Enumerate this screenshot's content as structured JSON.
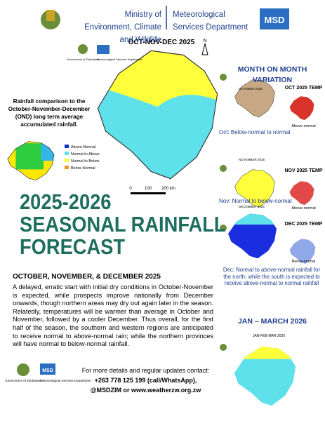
{
  "header": {
    "ministry": "Ministry of Environment, Climate and Wildlife",
    "department": "Meteorological Services Department",
    "logo": "MSD"
  },
  "main_map": {
    "title": "OCT-NOV-DEC 2025",
    "gov_label": "Government of Zimbabwe",
    "msd_label": "Meteorological Services Department",
    "scale": [
      "0",
      "100",
      "200 km"
    ],
    "north": "N"
  },
  "comparison": {
    "caption": "Rainfall comparison to the October-November-December (OND) long term average accumulated rainfall.",
    "legend": [
      "Above-Normal",
      "Normal to Above",
      "Normal to Below",
      "Below-Normal"
    ]
  },
  "title": {
    "line1": "2025-2026",
    "line2": "SEASONAL RAINFALL",
    "line3": "FORECAST"
  },
  "body": {
    "heading": "OCTOBER, NOVEMBER, & DECEMBER 2025",
    "paragraph": "A delayed, erratic start with initial dry conditions in October-November is expected, while prospects improve nationally from December onwards, though northern areas may dry out again later in the season. Relatedly, temperatures will be warmer than average in October and November, followed by a cooler December. Thus overall, for the first half of the season, the southern and western regions are anticipated to receive normal to above-normal rain; while the northern provinces will have normal to below-normal rainfall."
  },
  "contact": {
    "intro": "For more details and regular updates contact:",
    "phone": "+263 778 125 199 (call/WhatsApp),",
    "web": "@MSDZIM or www.weatherzw.org.zw",
    "gov_label": "Government of Zimbabwe",
    "msd_label": "Meteorological Services Department",
    "logo": "MSD"
  },
  "sidebar": {
    "title": "MONTH ON MONTH VARIATION",
    "panels": [
      {
        "map_title": "OCTOBER 2025",
        "temp_title": "OCT 2025 TEMP",
        "temp_label": "Above-normal",
        "caption": "Oct: Below-normal to normal"
      },
      {
        "map_title": "NOVEMBER 2025",
        "temp_title": "NOV 2025 TEMP",
        "temp_label": "Above-normal",
        "caption": "Nov: Normal to below-normal"
      },
      {
        "map_title": "DECEMBER 2025",
        "temp_title": "DEC 2025 TEMP",
        "temp_label": "Below-normal",
        "caption": "Dec: Normal to above-normal rainfall for the north; while the south is expected to receive above-normal to normal rainfall"
      }
    ],
    "jfm_title": "JAN – MARCH 2026",
    "jfm_map_title": "JAN-FEB-MAR 2026"
  }
}
